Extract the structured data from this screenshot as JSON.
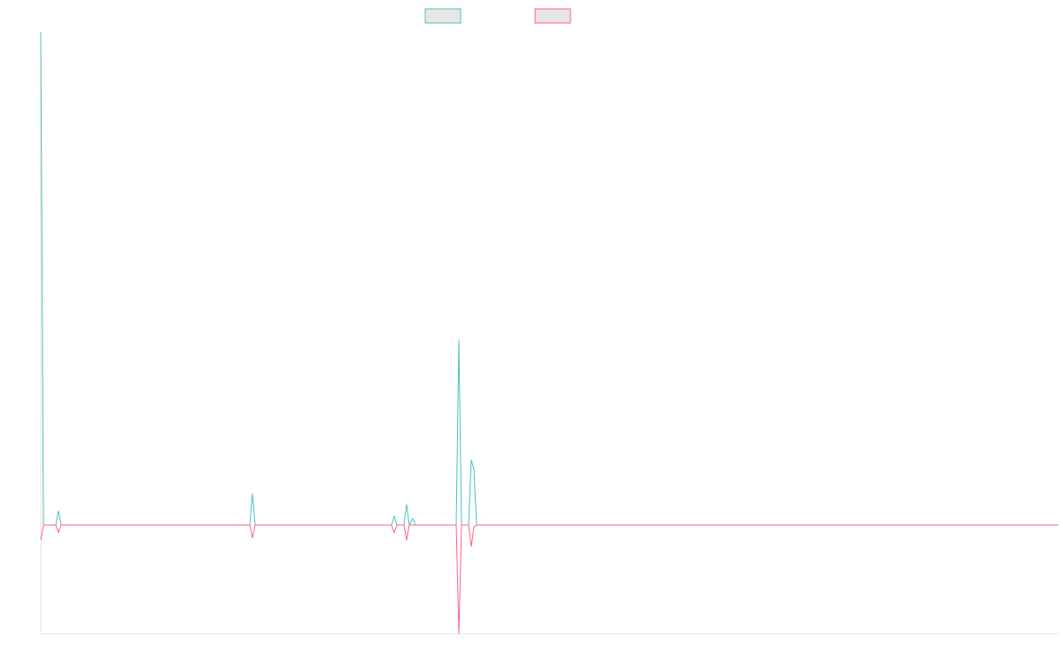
{
  "chart_data": {
    "type": "line",
    "xlim": [
      0,
      1149
    ],
    "ylim": [
      -1,
      4.53
    ],
    "series": [
      {
        "color": "#4bc0c0",
        "x": [
          0,
          3,
          17,
          20,
          23,
          236,
          239,
          242,
          396,
          399,
          402,
          410,
          413,
          416,
          420,
          423,
          469,
          472,
          475,
          483,
          486,
          489,
          492,
          1149
        ],
        "values": [
          4.53,
          0,
          0,
          0.13,
          0,
          0,
          0.29,
          0,
          0,
          0.08,
          0,
          0,
          0.19,
          0,
          0.06,
          0,
          0,
          1.7,
          0,
          0,
          0.6,
          0.51,
          0,
          0
        ]
      },
      {
        "color": "#ff6384",
        "x": [
          0,
          3,
          17,
          20,
          23,
          236,
          239,
          242,
          396,
          399,
          402,
          410,
          413,
          416,
          469,
          472,
          475,
          483,
          486,
          489,
          492,
          1149
        ],
        "values": [
          -0.14,
          0,
          0,
          -0.07,
          0,
          0,
          -0.12,
          0,
          0,
          -0.07,
          0,
          0,
          -0.14,
          0,
          0,
          -1,
          0,
          0,
          -0.2,
          -0.02,
          0,
          0
        ]
      }
    ]
  }
}
